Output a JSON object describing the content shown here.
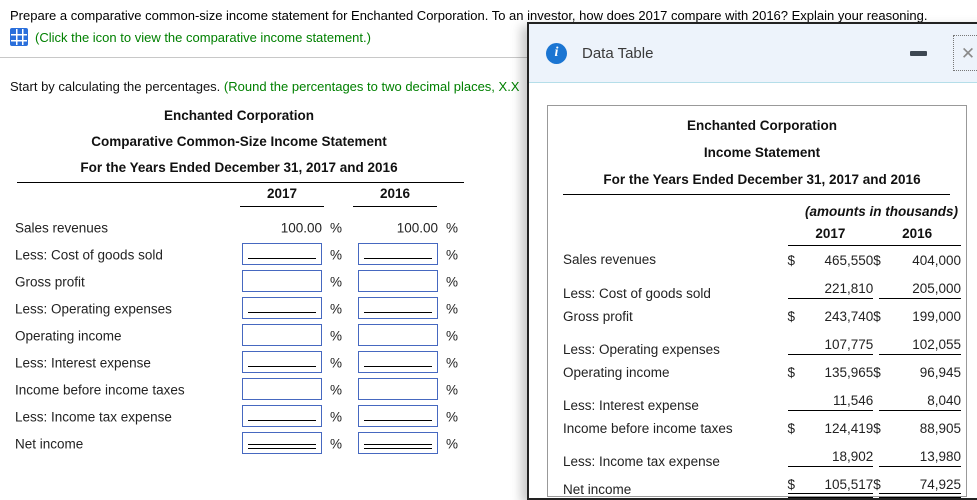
{
  "header": {
    "question": "Prepare a comparative common-size income statement for Enchanted Corporation. To an investor, how does 2017 compare with 2016? Explain your reasoning.",
    "icon_hint": "(Click the icon to view the comparative income statement.)",
    "instruction": "Start by calculating the percentages.",
    "instruction_hint": "(Round the percentages to two decimal places, X.X"
  },
  "form": {
    "company": "Enchanted Corporation",
    "title": "Comparative Common-Size Income Statement",
    "period": "For the Years Ended December 31, 2017 and 2016",
    "columns": [
      "2017",
      "2016"
    ],
    "percent_sign": "%",
    "rows": [
      {
        "label": "Sales revenues",
        "v2017": "100.00",
        "v2016": "100.00"
      },
      {
        "label": "Less: Cost of goods sold"
      },
      {
        "label": "Gross profit"
      },
      {
        "label": "Less: Operating expenses"
      },
      {
        "label": "Operating income"
      },
      {
        "label": "Less: Interest expense"
      },
      {
        "label": "Income before income taxes"
      },
      {
        "label": "Less: Income tax expense"
      },
      {
        "label": "Net income"
      }
    ]
  },
  "dialog": {
    "title": "Data Table",
    "info_glyph": "i",
    "close_glyph": "✕",
    "table": {
      "company": "Enchanted Corporation",
      "title": "Income Statement",
      "period": "For the Years Ended December 31, 2017 and 2016",
      "note": "(amounts in thousands)",
      "columns": [
        "2017",
        "2016"
      ],
      "rows": [
        {
          "label": "Sales revenues",
          "d1": "$",
          "v1": "465,550",
          "d2": "$",
          "v2": "404,000"
        },
        {
          "label": "Less: Cost of goods sold",
          "d1": "",
          "v1": "221,810",
          "d2": "",
          "v2": "205,000"
        },
        {
          "label": "Gross profit",
          "d1": "$",
          "v1": "243,740",
          "d2": "$",
          "v2": "199,000"
        },
        {
          "label": "Less: Operating expenses",
          "d1": "",
          "v1": "107,775",
          "d2": "",
          "v2": "102,055"
        },
        {
          "label": "Operating income",
          "d1": "$",
          "v1": "135,965",
          "d2": "$",
          "v2": "96,945"
        },
        {
          "label": "Less: Interest expense",
          "d1": "",
          "v1": "11,546",
          "d2": "",
          "v2": "8,040"
        },
        {
          "label": "Income before income taxes",
          "d1": "$",
          "v1": "124,419",
          "d2": "$",
          "v2": "88,905"
        },
        {
          "label": "Less: Income tax expense",
          "d1": "",
          "v1": "18,902",
          "d2": "",
          "v2": "13,980"
        },
        {
          "label": "Net income",
          "d1": "$",
          "v1": "105,517",
          "d2": "$",
          "v2": "74,925"
        }
      ]
    }
  },
  "colors": {
    "hint_green": "#008000",
    "input_border_blue": "#4668c0",
    "dialog_header_bg": "#edf3fb",
    "info_icon_blue": "#1b75d2",
    "table_icon_blue": "#2a6fdb"
  },
  "icons": {
    "view_statement": "table-grid-icon",
    "dialog_info": "info-icon",
    "minimize": "minimize-icon",
    "close": "close-icon"
  }
}
